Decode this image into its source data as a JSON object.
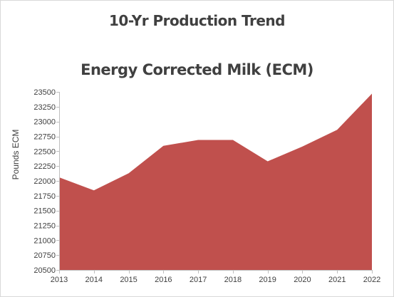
{
  "chart_data": {
    "type": "area",
    "title": "10-Yr Production Trend",
    "subtitle": "Energy Corrected Milk (ECM)",
    "xlabel": "",
    "ylabel": "Pounds ECM",
    "x": [
      2013,
      2014,
      2015,
      2016,
      2017,
      2018,
      2019,
      2020,
      2021,
      2022
    ],
    "series": [
      {
        "name": "",
        "values": [
          22060,
          21840,
          22130,
          22590,
          22690,
          22690,
          22330,
          22580,
          22860,
          23470
        ]
      }
    ],
    "ylim": [
      20500,
      23500
    ],
    "yticks": [
      20500,
      20750,
      21000,
      21250,
      21500,
      21750,
      22000,
      22250,
      22500,
      22750,
      23000,
      23250,
      23500
    ],
    "grid": false,
    "legend": "none",
    "fill_color": "#c0504d"
  }
}
